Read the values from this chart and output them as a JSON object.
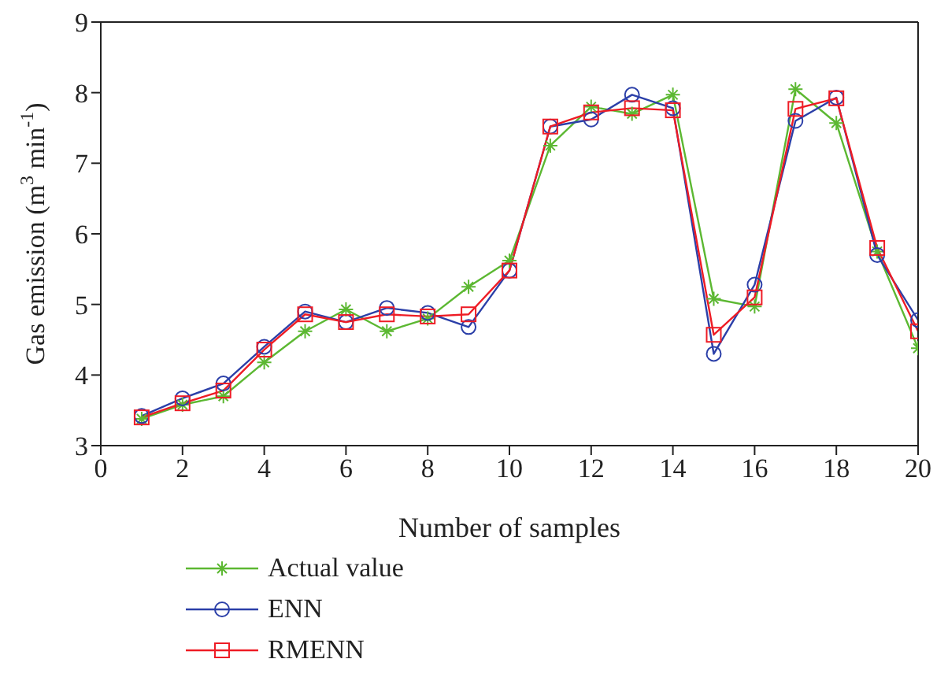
{
  "chart_data": {
    "type": "line",
    "xlabel": "Number of samples",
    "ylabel": "Gas emission (m$^{3}$ min$^{-1}$)",
    "x": [
      1,
      2,
      3,
      4,
      5,
      6,
      7,
      8,
      9,
      10,
      11,
      12,
      13,
      14,
      15,
      16,
      17,
      18,
      19,
      20
    ],
    "series": [
      {
        "name": "Actual value",
        "color": "#5cb832",
        "marker": "cross",
        "values": [
          3.38,
          3.58,
          3.7,
          4.18,
          4.62,
          4.93,
          4.62,
          4.8,
          5.25,
          5.62,
          7.25,
          7.8,
          7.7,
          7.97,
          5.08,
          4.97,
          8.05,
          7.57,
          5.75,
          4.38
        ]
      },
      {
        "name": "ENN",
        "color": "#2b3fa8",
        "marker": "circle",
        "values": [
          3.42,
          3.67,
          3.88,
          4.4,
          4.9,
          4.75,
          4.95,
          4.88,
          4.68,
          5.48,
          7.52,
          7.62,
          7.97,
          7.78,
          4.3,
          5.28,
          7.6,
          7.93,
          5.7,
          4.78
        ]
      },
      {
        "name": "RMENN",
        "color": "#ee1c25",
        "marker": "square",
        "values": [
          3.4,
          3.6,
          3.78,
          4.36,
          4.86,
          4.75,
          4.86,
          4.83,
          4.86,
          5.48,
          7.52,
          7.72,
          7.78,
          7.75,
          4.57,
          5.1,
          7.77,
          7.92,
          5.8,
          4.62
        ]
      }
    ],
    "xlim": [
      0,
      20
    ],
    "xticks": [
      0,
      2,
      4,
      6,
      8,
      10,
      12,
      14,
      16,
      18,
      20
    ],
    "ylim": [
      3,
      9
    ],
    "yticks": [
      3,
      4,
      5,
      6,
      7,
      8,
      9
    ],
    "grid": false,
    "legend": "bottom left",
    "line_style": "solid"
  }
}
